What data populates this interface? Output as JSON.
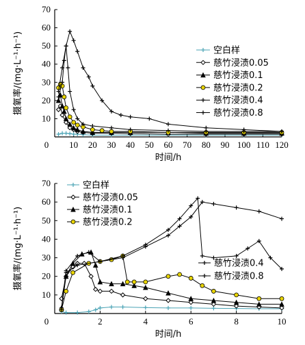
{
  "chart_data": [
    {
      "type": "line",
      "xlabel": "时间/h",
      "ylabel": "摄氧率/(mg·L⁻¹·h⁻¹)",
      "xlim": [
        0,
        120
      ],
      "ylim": [
        0,
        70
      ],
      "xticks": [
        0,
        10,
        20,
        30,
        40,
        50,
        60,
        70,
        80,
        90,
        100,
        110,
        120
      ],
      "yticks": [
        10,
        20,
        30,
        40,
        50,
        60,
        70
      ],
      "x0_label": "0",
      "legend_position": "right",
      "series": [
        {
          "name": "空白样",
          "marker": "plus",
          "color": "#4aa3b5",
          "x": [
            2,
            4,
            6,
            8,
            10,
            12,
            15,
            20,
            30,
            40,
            60,
            80,
            100,
            120
          ],
          "y": [
            1.5,
            2,
            2,
            1.8,
            1.5,
            1.5,
            1.2,
            1,
            1,
            1,
            1,
            1,
            1,
            1
          ]
        },
        {
          "name": "慈竹浸渍0.05",
          "marker": "diamond",
          "color": "#000000",
          "x": [
            2,
            3,
            4,
            6,
            8,
            10,
            12,
            15,
            20,
            30,
            40,
            60,
            80,
            100,
            120
          ],
          "y": [
            15,
            17,
            12,
            8,
            5,
            4,
            3,
            2.5,
            2,
            2,
            1.8,
            1.5,
            1.5,
            1.5,
            1.5
          ]
        },
        {
          "name": "慈竹浸渍0.1",
          "marker": "triangle",
          "color": "#000000",
          "x": [
            2,
            3,
            4,
            5,
            6,
            8,
            10,
            12,
            15,
            20,
            30,
            40,
            60,
            80,
            100,
            120
          ],
          "y": [
            20,
            23,
            17,
            14,
            10,
            7,
            5,
            4,
            3,
            2.5,
            2.5,
            2.5,
            2.5,
            2,
            2,
            2
          ]
        },
        {
          "name": "慈竹浸渍0.2",
          "marker": "circle",
          "color": "#e8d400",
          "x": [
            2,
            3,
            4,
            5,
            6,
            8,
            10,
            12,
            15,
            20,
            25,
            30,
            40,
            60,
            80,
            100,
            120
          ],
          "y": [
            27,
            29,
            28,
            22,
            16,
            11,
            8,
            6.5,
            5.5,
            4,
            3.5,
            3,
            3,
            2.5,
            2.5,
            2.5,
            2.5
          ]
        },
        {
          "name": "慈竹浸渍0.4",
          "marker": "plus",
          "color": "#000000",
          "x": [
            2,
            4,
            5,
            6,
            7,
            8,
            10,
            12,
            15,
            20,
            30,
            40,
            60,
            80,
            100,
            120
          ],
          "y": [
            22,
            30,
            42,
            50,
            38,
            25,
            15,
            10,
            7,
            6,
            5,
            4,
            3.5,
            3,
            3,
            3
          ]
        },
        {
          "name": "慈竹浸渍0.8",
          "marker": "plus",
          "color": "#000000",
          "x": [
            2,
            4,
            6,
            8,
            10,
            12,
            15,
            18,
            20,
            25,
            30,
            35,
            40,
            50,
            60,
            80,
            100,
            120
          ],
          "y": [
            25,
            38,
            50,
            58,
            53,
            47,
            38,
            33,
            28,
            20,
            14,
            12,
            11,
            10,
            7,
            5,
            4,
            3
          ]
        }
      ]
    },
    {
      "type": "line",
      "xlabel": "时间/h",
      "ylabel": "摄氧率/(mg·L⁻¹·h⁻¹)",
      "xlim": [
        0,
        10
      ],
      "ylim": [
        0,
        70
      ],
      "xticks": [
        2,
        4,
        6,
        8,
        10
      ],
      "yticks": [
        10,
        20,
        30,
        40,
        50,
        60,
        70
      ],
      "x0_label": "0",
      "series": [
        {
          "name": "空白样",
          "marker": "plus",
          "color": "#4aa3b5",
          "x": [
            0.3,
            0.5,
            1,
            1.5,
            1.8,
            2,
            2.5,
            3,
            4,
            5,
            6,
            7,
            8,
            9,
            10
          ],
          "y": [
            1,
            0.5,
            0.5,
            1,
            2,
            3,
            3.5,
            3.5,
            3.2,
            3,
            3,
            2.8,
            2.7,
            2.6,
            2.6
          ]
        },
        {
          "name": "慈竹浸渍0.05",
          "marker": "diamond",
          "color": "#000000",
          "x": [
            0.3,
            0.5,
            0.8,
            1.0,
            1.3,
            1.6,
            1.8,
            2,
            2.5,
            3,
            4,
            5,
            6,
            7,
            8,
            9,
            10
          ],
          "y": [
            8,
            20,
            25,
            27,
            27,
            20,
            13,
            12,
            12,
            10,
            8,
            7,
            6,
            5,
            4,
            3.5,
            3
          ]
        },
        {
          "name": "慈竹浸渍0.1",
          "marker": "triangle",
          "color": "#000000",
          "x": [
            0.3,
            0.5,
            0.8,
            1.2,
            1.6,
            1.8,
            2,
            2.5,
            3,
            3.5,
            4,
            5,
            6,
            7,
            8,
            9,
            10
          ],
          "y": [
            3,
            20,
            27,
            32,
            33,
            26,
            17,
            16,
            16,
            15,
            14,
            11,
            8,
            7,
            6,
            5,
            5
          ]
        },
        {
          "name": "慈竹浸渍0.2",
          "marker": "circle",
          "color": "#e8d400",
          "x": [
            0.3,
            0.5,
            0.8,
            1.5,
            2,
            2.5,
            3,
            3.2,
            3.5,
            4,
            5,
            5.5,
            6,
            6.5,
            7,
            8,
            9,
            10
          ],
          "y": [
            2,
            12,
            22,
            27,
            28,
            29,
            31,
            17,
            17,
            17,
            20,
            21,
            19,
            15,
            12,
            10,
            8,
            8
          ]
        },
        {
          "name": "慈竹浸渍0.4",
          "marker": "plus",
          "color": "#000000",
          "x": [
            0.3,
            0.5,
            1,
            2,
            3,
            4,
            5,
            5.5,
            6,
            6.3,
            6.5,
            7,
            8,
            8.5,
            9,
            9.5,
            10
          ],
          "y": [
            2,
            22,
            26,
            28,
            31,
            37,
            45,
            51,
            58,
            62,
            31,
            30,
            31,
            35,
            39,
            30,
            24
          ]
        },
        {
          "name": "慈竹浸渍0.8",
          "marker": "plus",
          "color": "#000000",
          "x": [
            0.3,
            0.5,
            1,
            1.5,
            2,
            3,
            4,
            5,
            5.5,
            6,
            6.5,
            7,
            8,
            9,
            10
          ],
          "y": [
            3,
            23,
            31,
            33,
            28,
            30,
            36,
            42,
            47,
            52,
            60,
            59,
            57,
            55,
            51
          ]
        }
      ]
    }
  ]
}
